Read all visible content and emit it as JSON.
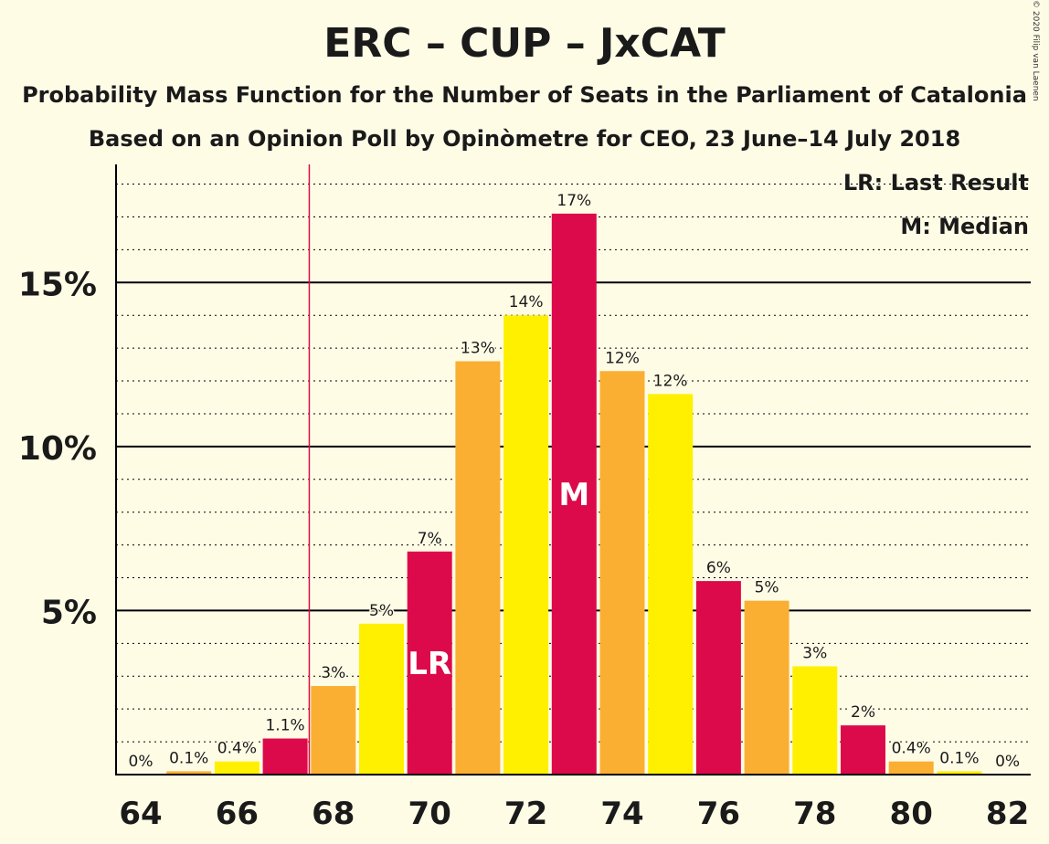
{
  "title": "ERC – CUP – JxCAT",
  "subtitle1": "Probability Mass Function for the Number of Seats in the Parliament of Catalonia",
  "subtitle2": "Based on an Opinion Poll by Opinòmetre for CEO, 23 June–14 July 2018",
  "copyright": "© 2020 Filip van Laenen",
  "legend": {
    "last_result": "LR: Last Result",
    "median": "M: Median"
  },
  "colors": {
    "background": "#FFFCE6",
    "series": [
      "#DC0A4A",
      "#FAAF32",
      "#FFF000"
    ],
    "last_result_line": "#DC0A4A"
  },
  "chart_data": {
    "type": "bar",
    "categories": [
      64,
      65,
      66,
      67,
      68,
      69,
      70,
      71,
      72,
      73,
      74,
      75,
      76,
      77,
      78,
      79,
      80,
      81,
      82
    ],
    "values": [
      0,
      0.1,
      0.4,
      1.1,
      2.7,
      4.6,
      6.8,
      12.6,
      14.0,
      17.1,
      12.3,
      11.6,
      5.9,
      5.3,
      3.3,
      1.5,
      0.4,
      0.1,
      0
    ],
    "value_labels": [
      "0%",
      "0.1%",
      "0.4%",
      "1.1%",
      "3%",
      "5%",
      "7%",
      "13%",
      "14%",
      "17%",
      "12%",
      "12%",
      "6%",
      "5%",
      "3%",
      "2%",
      "0.4%",
      "0.1%",
      "0%"
    ],
    "x_tick_labels": [
      "64",
      "66",
      "68",
      "70",
      "72",
      "74",
      "76",
      "78",
      "80",
      "82"
    ],
    "y_ticks": [
      5,
      10,
      15
    ],
    "y_tick_labels": [
      "5%",
      "10%",
      "15%"
    ],
    "ylim": [
      0,
      18.6
    ],
    "last_result": 67.5,
    "last_result_bar": 70,
    "last_result_label": "LR",
    "median": 73,
    "median_label": "M",
    "grid": "dotted minor, solid major"
  }
}
